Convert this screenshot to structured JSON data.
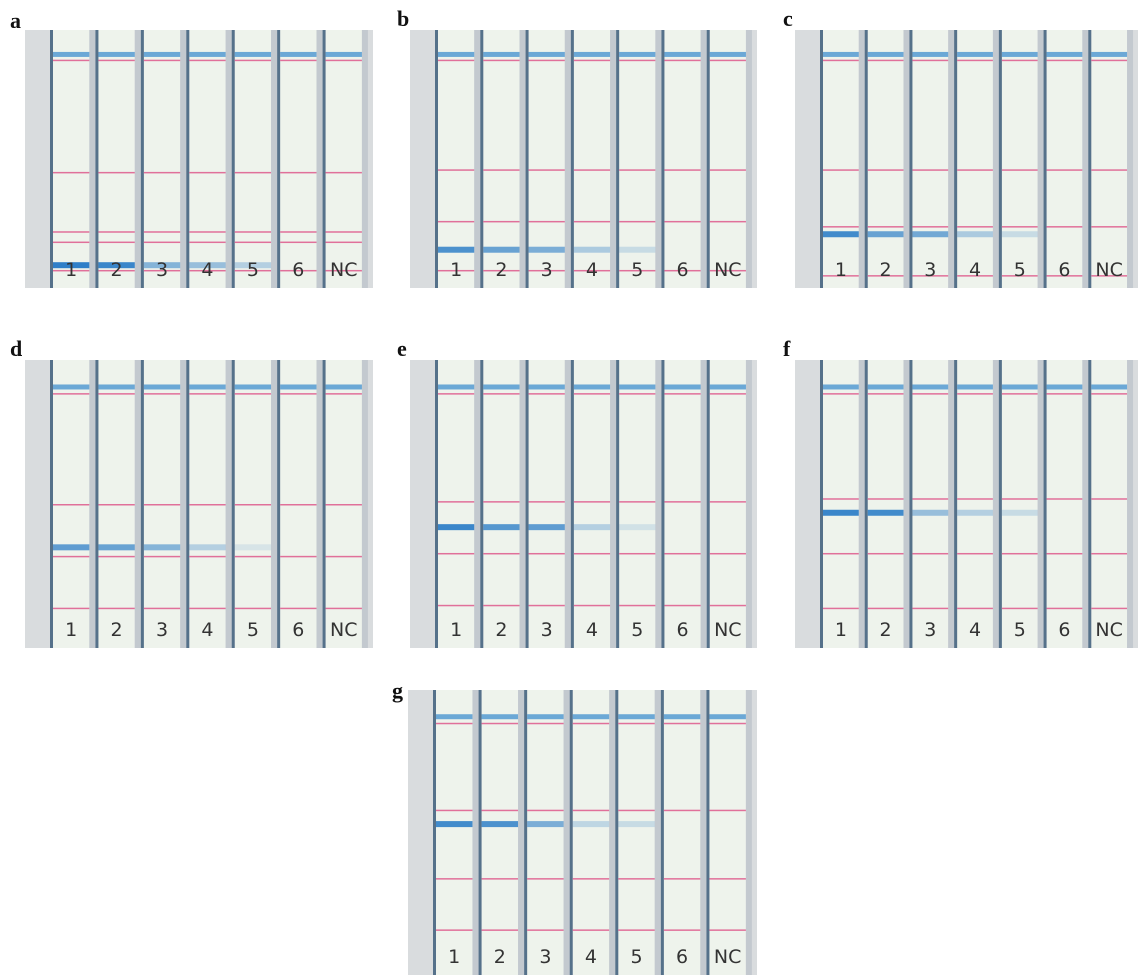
{
  "panels": [
    {
      "label": "a",
      "lanes": [
        "1",
        "2",
        "3",
        "4",
        "5",
        "6",
        "NC"
      ]
    },
    {
      "label": "b",
      "lanes": [
        "1",
        "2",
        "3",
        "4",
        "5",
        "6",
        "NC"
      ]
    },
    {
      "label": "c",
      "lanes": [
        "1",
        "2",
        "3",
        "4",
        "5",
        "6",
        "NC"
      ]
    },
    {
      "label": "d",
      "lanes": [
        "1",
        "2",
        "3",
        "4",
        "5",
        "6",
        "NC"
      ]
    },
    {
      "label": "e",
      "lanes": [
        "1",
        "2",
        "3",
        "4",
        "5",
        "6",
        "NC"
      ]
    },
    {
      "label": "f",
      "lanes": [
        "1",
        "2",
        "3",
        "4",
        "5",
        "6",
        "NC"
      ]
    },
    {
      "label": "g",
      "lanes": [
        "1",
        "2",
        "3",
        "4",
        "5",
        "6",
        "NC"
      ]
    }
  ]
}
